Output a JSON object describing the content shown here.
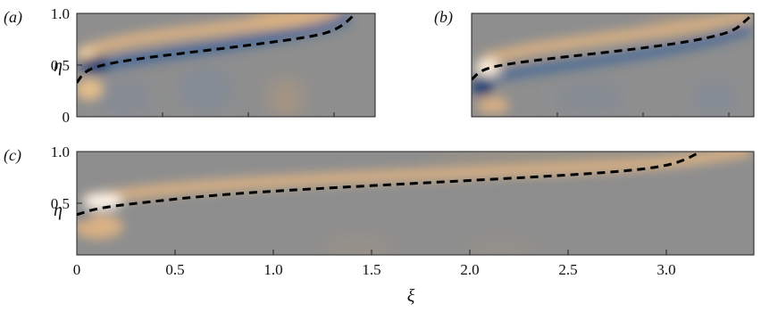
{
  "chart_data": [
    {
      "type": "heatmap",
      "panel_label": "(a)",
      "ylabel": "η",
      "xlim": [
        0,
        1.5
      ],
      "ylim": [
        0,
        1.0
      ],
      "y_ticks": [
        "0",
        "0.5",
        "1.0"
      ],
      "colormap": {
        "positive": "#f0c48a",
        "negative": "#2f5c9a",
        "zero": "#8e8e8e"
      },
      "dashed_line": {
        "x": [
          0,
          0.04,
          0.12,
          0.3,
          0.6,
          0.9,
          1.2,
          1.3,
          1.36,
          1.4
        ],
        "y": [
          0.33,
          0.44,
          0.5,
          0.56,
          0.63,
          0.7,
          0.78,
          0.84,
          0.92,
          1.0
        ]
      }
    },
    {
      "type": "heatmap",
      "panel_label": "(b)",
      "ylabel": "",
      "xlim": [
        0,
        1.5
      ],
      "ylim": [
        0,
        1.0
      ],
      "y_ticks": [],
      "colormap": {
        "positive": "#f0c48a",
        "negative": "#2f5c9a",
        "zero": "#8e8e8e"
      },
      "dashed_line": {
        "x": [
          0,
          0.05,
          0.15,
          0.4,
          0.8,
          1.1,
          1.3,
          1.4,
          1.45,
          1.5
        ],
        "y": [
          0.36,
          0.45,
          0.5,
          0.56,
          0.64,
          0.71,
          0.78,
          0.84,
          0.92,
          1.0
        ]
      }
    },
    {
      "type": "heatmap",
      "panel_label": "(c)",
      "xlabel": "ξ",
      "ylabel": "η",
      "xlim": [
        0,
        3.45
      ],
      "ylim": [
        0,
        1.0
      ],
      "x_ticks": [
        "0",
        "0.5",
        "1.0",
        "1.5",
        "2.0",
        "2.5",
        "3.0"
      ],
      "y_ticks": [
        "0.5",
        "1.0"
      ],
      "colormap": {
        "positive": "#f0c48a",
        "negative": "#2f5c9a",
        "zero": "#8e8e8e"
      },
      "dashed_line": {
        "x": [
          0,
          0.1,
          0.3,
          0.7,
          1.2,
          1.8,
          2.4,
          2.8,
          3.0,
          3.1,
          3.18
        ],
        "y": [
          0.39,
          0.45,
          0.5,
          0.58,
          0.64,
          0.7,
          0.76,
          0.81,
          0.86,
          0.92,
          1.0
        ]
      }
    }
  ]
}
